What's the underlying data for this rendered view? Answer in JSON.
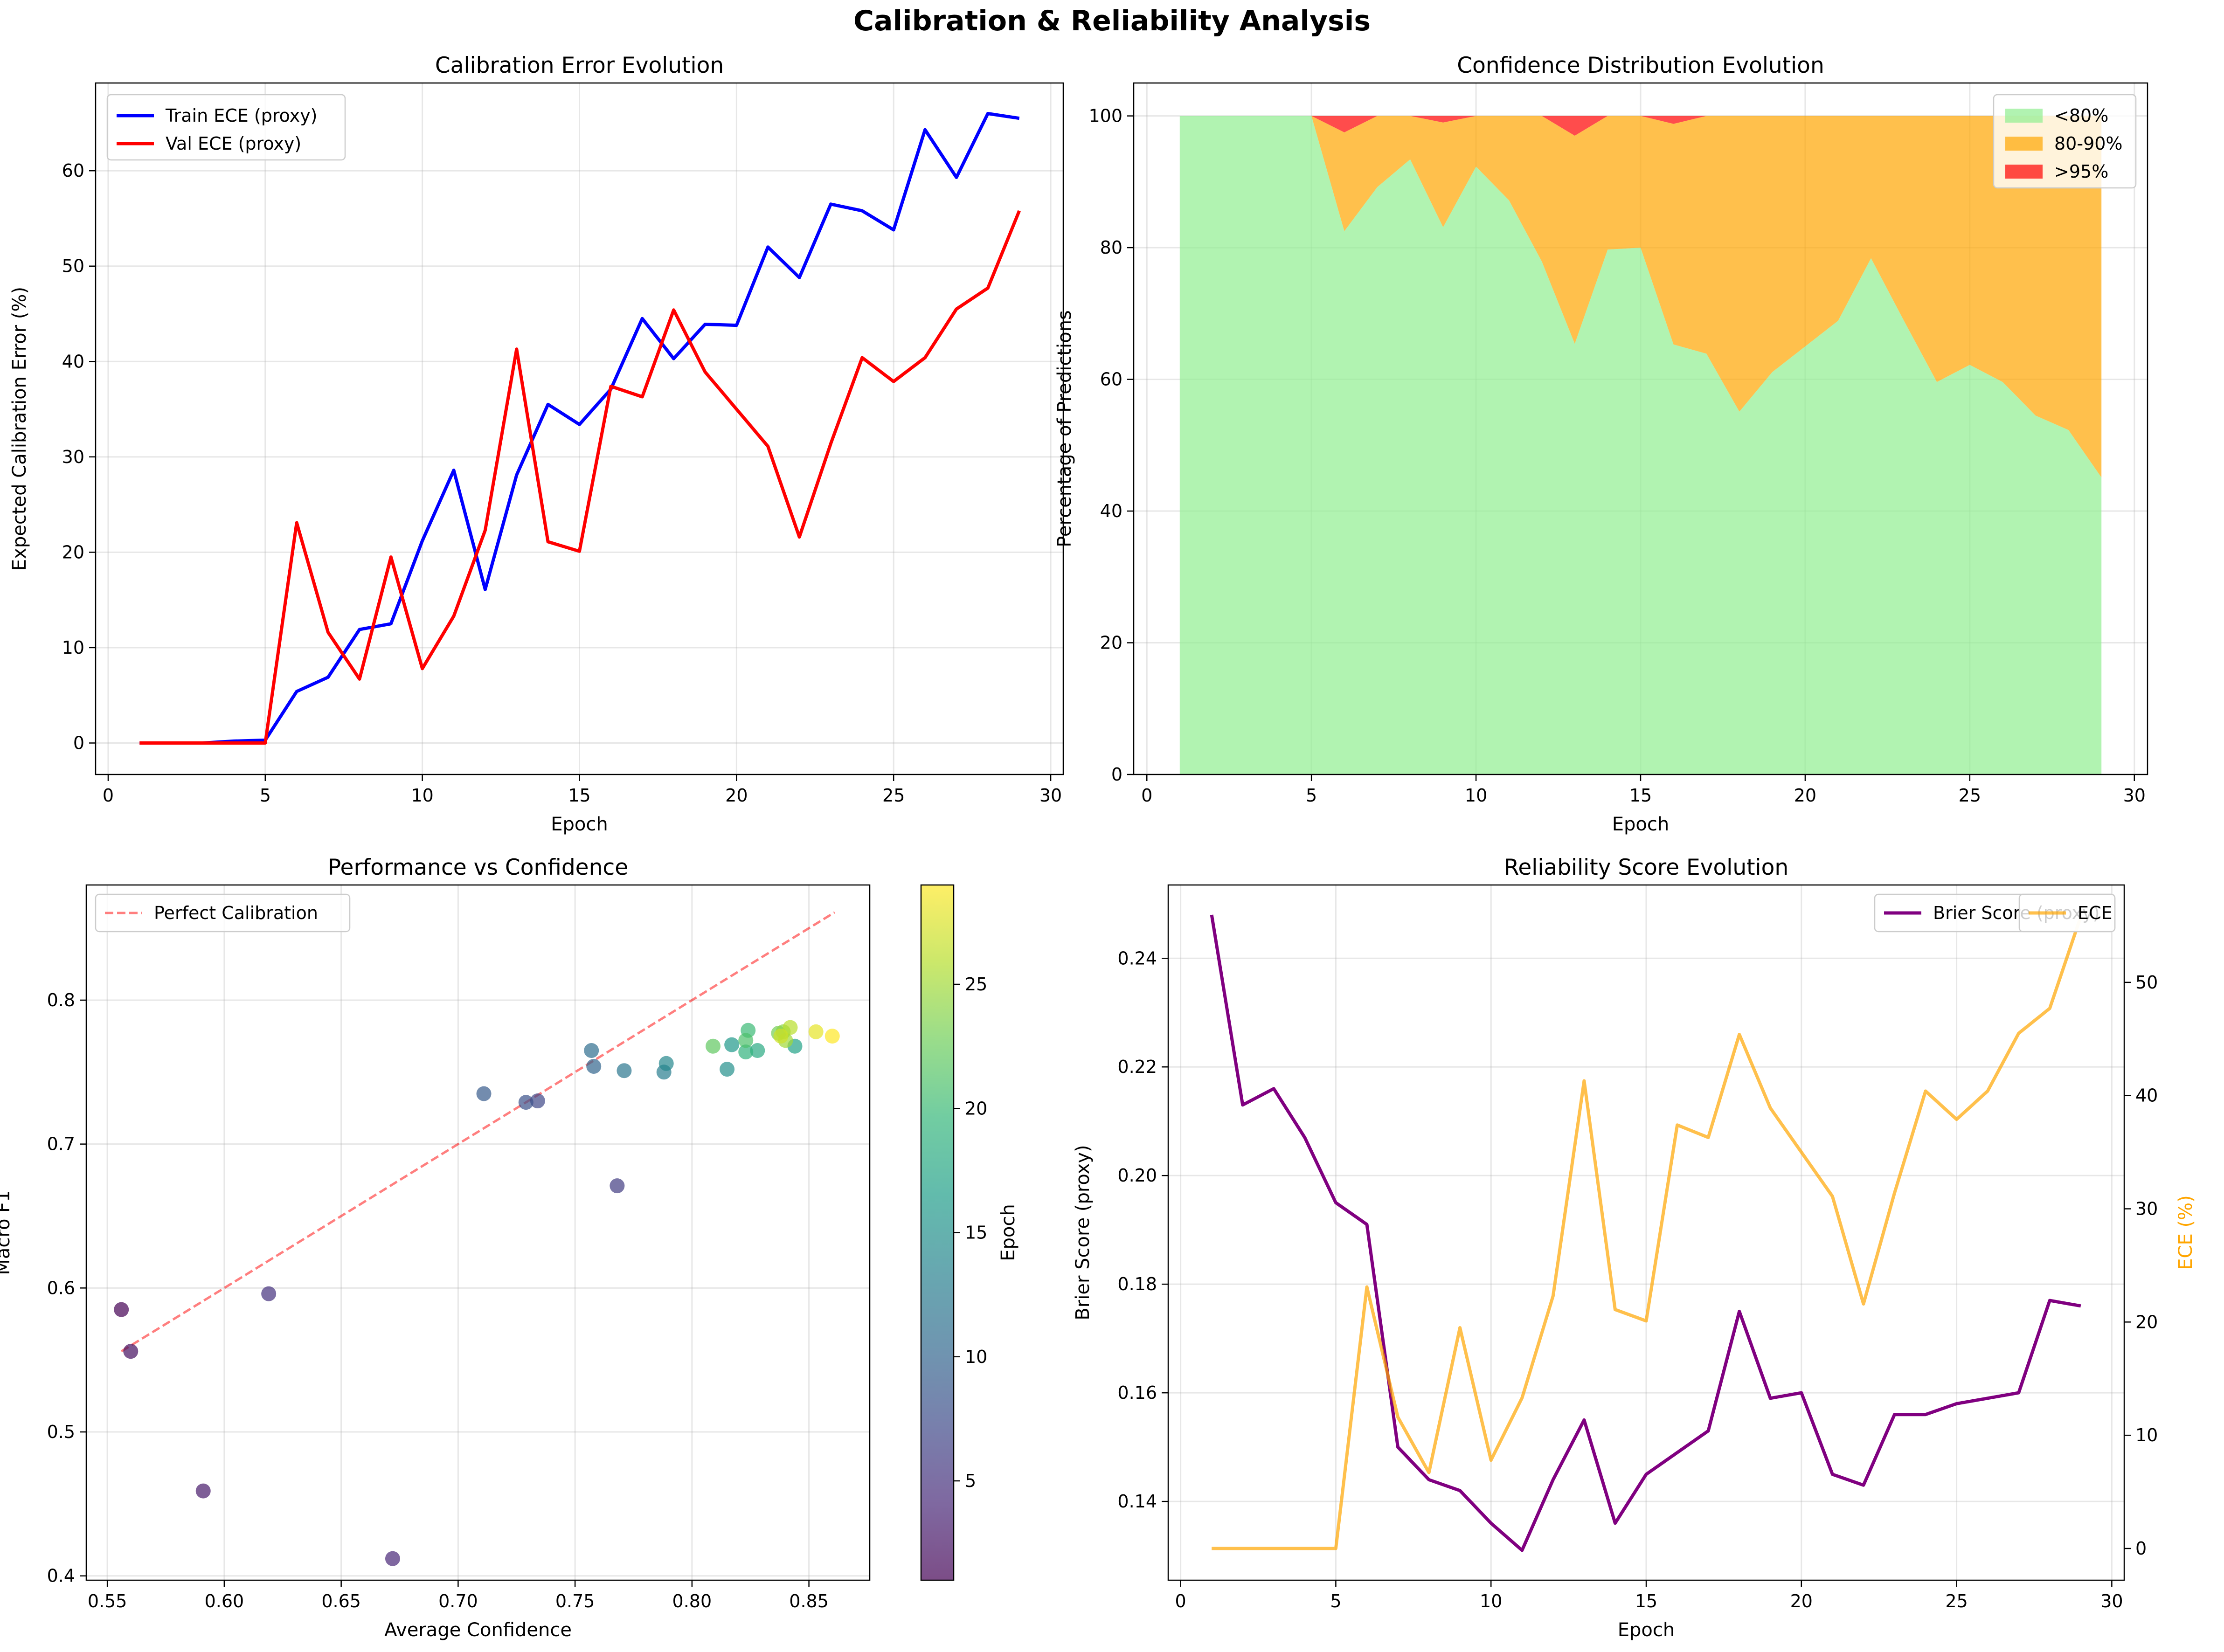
{
  "figure": {
    "title": "Calibration & Reliability Analysis"
  },
  "chart_data": [
    {
      "id": "ece",
      "type": "line",
      "title": "Calibration Error Evolution",
      "xlabel": "Epoch",
      "ylabel": "Expected Calibration Error (%)",
      "xlim": [
        -0.4,
        30.4
      ],
      "ylim": [
        -3.3,
        69.2
      ],
      "xticks": [
        0,
        5,
        10,
        15,
        20,
        25,
        30
      ],
      "yticks": [
        0,
        10,
        20,
        30,
        40,
        50,
        60
      ],
      "grid": true,
      "legend_position": "top-left",
      "x": [
        1,
        2,
        3,
        4,
        5,
        6,
        7,
        8,
        9,
        10,
        11,
        12,
        13,
        14,
        15,
        16,
        17,
        18,
        19,
        20,
        21,
        22,
        23,
        24,
        25,
        26,
        27,
        28,
        29
      ],
      "series": [
        {
          "name": "Train ECE (proxy)",
          "color": "#0000ff",
          "values": [
            0,
            0,
            0,
            0.2,
            0.3,
            5.4,
            6.9,
            11.9,
            12.5,
            21.2,
            28.6,
            16.1,
            28.1,
            35.5,
            33.4,
            37.1,
            44.5,
            40.3,
            43.9,
            43.8,
            52.0,
            48.8,
            56.5,
            55.8,
            53.8,
            64.3,
            59.3,
            66.0,
            65.5
          ]
        },
        {
          "name": "Val ECE (proxy)",
          "color": "#ff0000",
          "values": [
            0,
            0,
            0,
            0,
            0,
            23.1,
            11.6,
            6.7,
            19.5,
            7.8,
            13.3,
            22.3,
            41.3,
            21.1,
            20.1,
            37.4,
            36.3,
            45.4,
            38.9,
            35.0,
            31.1,
            21.6,
            31.4,
            40.4,
            37.9,
            40.4,
            45.5,
            47.7,
            55.8
          ]
        }
      ]
    },
    {
      "id": "dist",
      "type": "area",
      "title": "Confidence Distribution Evolution",
      "xlabel": "Epoch",
      "ylabel": "Percentage of Predictions",
      "xlim": [
        -0.4,
        30.4
      ],
      "ylim": [
        0,
        105
      ],
      "xticks": [
        0,
        5,
        10,
        15,
        20,
        25,
        30
      ],
      "yticks": [
        0,
        20,
        40,
        60,
        80,
        100
      ],
      "grid": true,
      "legend_position": "top-right",
      "stacked": true,
      "x": [
        1,
        2,
        3,
        4,
        5,
        6,
        7,
        8,
        9,
        10,
        11,
        12,
        13,
        14,
        15,
        16,
        17,
        18,
        19,
        20,
        21,
        22,
        23,
        24,
        25,
        26,
        27,
        28,
        29
      ],
      "series": [
        {
          "name": "<80%",
          "color": "#90ee90",
          "values": [
            100,
            100,
            100,
            100,
            100,
            82.5,
            89.2,
            93.4,
            83.1,
            92.3,
            87.2,
            77.9,
            65.4,
            79.7,
            80.0,
            65.3,
            63.9,
            55.1,
            61.1,
            65.0,
            68.9,
            78.4,
            68.9,
            59.6,
            62.2,
            59.6,
            54.5,
            52.3,
            45.1
          ]
        },
        {
          "name": "80-90%",
          "color": "#ffa500",
          "values": [
            0,
            0,
            0,
            0,
            0,
            15.0,
            10.8,
            6.6,
            15.9,
            7.7,
            12.8,
            22.1,
            31.6,
            20.3,
            20.0,
            33.5,
            36.1,
            44.9,
            38.9,
            35.0,
            31.1,
            21.6,
            31.1,
            40.4,
            37.8,
            40.4,
            45.5,
            47.7,
            54.9
          ]
        },
        {
          "name": ">95%",
          "color": "#ff0000",
          "values": [
            0,
            0,
            0,
            0,
            0,
            2.5,
            0,
            0,
            1.0,
            0,
            0,
            0,
            3.0,
            0,
            0,
            1.2,
            0,
            0,
            0,
            0,
            0,
            0,
            0,
            0,
            0,
            0,
            0,
            0,
            0
          ]
        }
      ]
    },
    {
      "id": "perf",
      "type": "scatter",
      "title": "Performance vs Confidence",
      "xlabel": "Average Confidence",
      "ylabel": "Macro F1",
      "xlim": [
        0.541,
        0.876
      ],
      "ylim": [
        0.397,
        0.88
      ],
      "xticks": [
        0.55,
        0.6,
        0.65,
        0.7,
        0.75,
        0.8,
        0.85
      ],
      "xtick_labels": [
        "0.55",
        "0.60",
        "0.65",
        "0.70",
        "0.75",
        "0.80",
        "0.85"
      ],
      "yticks": [
        0.4,
        0.5,
        0.6,
        0.7,
        0.8
      ],
      "ytick_labels": [
        "0.4",
        "0.5",
        "0.6",
        "0.7",
        "0.8"
      ],
      "grid": true,
      "legend_position": "top-left",
      "reference_line": {
        "name": "Perfect Calibration",
        "color": "#ff0000",
        "x": [
          0.556,
          0.861
        ],
        "y": [
          0.556,
          0.861
        ]
      },
      "colorbar": {
        "label": "Epoch",
        "min": 1,
        "max": 29,
        "ticks": [
          5,
          10,
          15,
          20,
          25
        ],
        "colormap": "viridis"
      },
      "points": [
        {
          "epoch": 1,
          "x": 0.556,
          "y": 0.585
        },
        {
          "epoch": 2,
          "x": 0.56,
          "y": 0.556
        },
        {
          "epoch": 3,
          "x": 0.591,
          "y": 0.459
        },
        {
          "epoch": 4,
          "x": 0.672,
          "y": 0.412
        },
        {
          "epoch": 5,
          "x": 0.619,
          "y": 0.596
        },
        {
          "epoch": 6,
          "x": 0.768,
          "y": 0.671
        },
        {
          "epoch": 7,
          "x": 0.734,
          "y": 0.73
        },
        {
          "epoch": 8,
          "x": 0.729,
          "y": 0.729
        },
        {
          "epoch": 9,
          "x": 0.711,
          "y": 0.735
        },
        {
          "epoch": 10,
          "x": 0.758,
          "y": 0.754
        },
        {
          "epoch": 11,
          "x": 0.757,
          "y": 0.765
        },
        {
          "epoch": 12,
          "x": 0.771,
          "y": 0.751
        },
        {
          "epoch": 13,
          "x": 0.788,
          "y": 0.75
        },
        {
          "epoch": 14,
          "x": 0.789,
          "y": 0.756
        },
        {
          "epoch": 15,
          "x": 0.815,
          "y": 0.752
        },
        {
          "epoch": 16,
          "x": 0.817,
          "y": 0.769
        },
        {
          "epoch": 17,
          "x": 0.844,
          "y": 0.768
        },
        {
          "epoch": 18,
          "x": 0.828,
          "y": 0.765
        },
        {
          "epoch": 19,
          "x": 0.823,
          "y": 0.764
        },
        {
          "epoch": 20,
          "x": 0.824,
          "y": 0.779
        },
        {
          "epoch": 21,
          "x": 0.823,
          "y": 0.772
        },
        {
          "epoch": 22,
          "x": 0.809,
          "y": 0.768
        },
        {
          "epoch": 23,
          "x": 0.837,
          "y": 0.777
        },
        {
          "epoch": 24,
          "x": 0.839,
          "y": 0.778
        },
        {
          "epoch": 25,
          "x": 0.84,
          "y": 0.772
        },
        {
          "epoch": 26,
          "x": 0.842,
          "y": 0.781
        },
        {
          "epoch": 27,
          "x": 0.838,
          "y": 0.775
        },
        {
          "epoch": 28,
          "x": 0.853,
          "y": 0.778
        },
        {
          "epoch": 29,
          "x": 0.86,
          "y": 0.775
        }
      ]
    },
    {
      "id": "rel",
      "type": "line",
      "title": "Reliability Score Evolution",
      "xlabel": "Epoch",
      "ylabel": "Brier Score (proxy)",
      "ylabel_right": "ECE (%)",
      "xlim": [
        -0.4,
        30.4
      ],
      "ylim": [
        0.1255,
        0.2535
      ],
      "ylim_right": [
        -2.8,
        58.6
      ],
      "xticks": [
        0,
        5,
        10,
        15,
        20,
        25,
        30
      ],
      "yticks": [
        0.14,
        0.16,
        0.18,
        0.2,
        0.22,
        0.24
      ],
      "ytick_labels": [
        "0.14",
        "0.16",
        "0.18",
        "0.20",
        "0.22",
        "0.24"
      ],
      "yticks_right": [
        0,
        10,
        20,
        30,
        40,
        50
      ],
      "grid": true,
      "legend_position": "top-right",
      "x": [
        1,
        2,
        3,
        4,
        5,
        6,
        7,
        8,
        9,
        10,
        11,
        12,
        13,
        14,
        15,
        16,
        17,
        18,
        19,
        20,
        21,
        22,
        23,
        24,
        25,
        26,
        27,
        28,
        29
      ],
      "series": [
        {
          "name": "Brier Score (proxy)",
          "color": "#800080",
          "axis": "left",
          "values": [
            0.248,
            0.213,
            0.216,
            0.207,
            0.195,
            0.191,
            0.15,
            0.144,
            0.142,
            0.136,
            0.131,
            0.144,
            0.155,
            0.136,
            0.145,
            0.149,
            0.153,
            0.175,
            0.159,
            0.16,
            0.145,
            0.143,
            0.156,
            0.156,
            0.158,
            0.159,
            0.16,
            0.177,
            0.176
          ]
        },
        {
          "name": "ECE",
          "color": "#ffa500",
          "axis": "right",
          "values": [
            0,
            0,
            0,
            0,
            0,
            23.1,
            11.6,
            6.7,
            19.5,
            7.8,
            13.3,
            22.3,
            41.3,
            21.1,
            20.1,
            37.4,
            36.3,
            45.4,
            38.9,
            35.0,
            31.1,
            21.6,
            31.4,
            40.4,
            37.9,
            40.4,
            45.5,
            47.7,
            55.8
          ]
        }
      ]
    }
  ]
}
